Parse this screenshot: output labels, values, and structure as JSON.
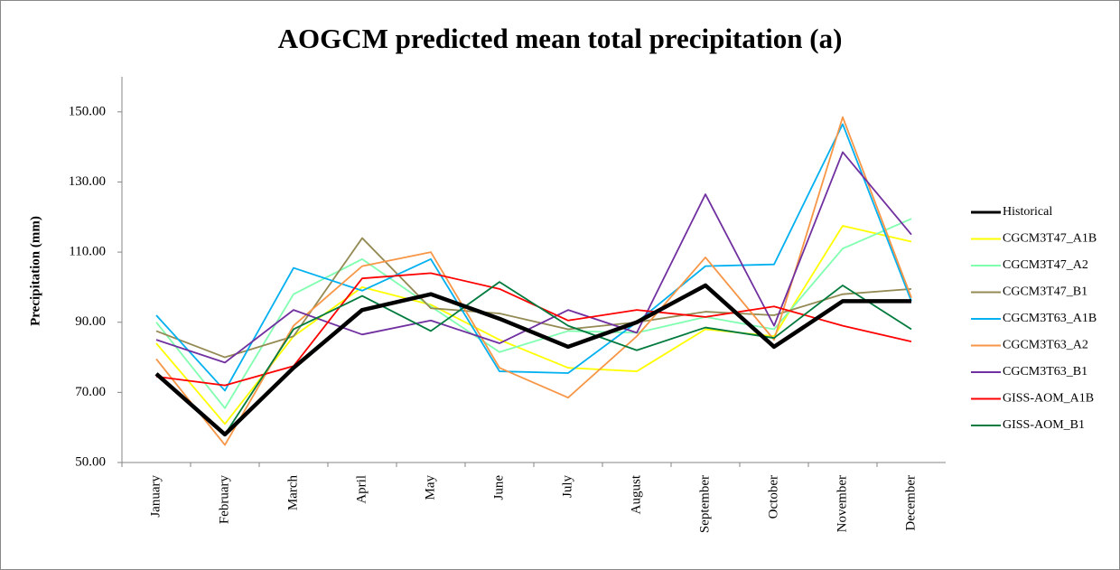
{
  "chart_data": {
    "type": "line",
    "title": "AOGCM predicted mean total precipitation (a)",
    "y_label": "Precipitation (mm)",
    "categories": [
      "January",
      "February",
      "March",
      "April",
      "May",
      "June",
      "July",
      "August",
      "September",
      "October",
      "November",
      "December"
    ],
    "ylim": [
      50,
      160
    ],
    "yticks": [
      {
        "value": 50,
        "label": "50.00"
      },
      {
        "value": 70,
        "label": "70.00"
      },
      {
        "value": 90,
        "label": "90.00"
      },
      {
        "value": 110,
        "label": "110.00"
      },
      {
        "value": 130,
        "label": "130.00"
      },
      {
        "value": 150,
        "label": "150.00"
      }
    ],
    "legend": "right",
    "series": [
      {
        "name": "Historical",
        "color": "#000000",
        "values": [
          75.3,
          58,
          77,
          93.5,
          98,
          91,
          83,
          90,
          100.5,
          83,
          96,
          96
        ]
      },
      {
        "name": "CGCM3T47_A1B",
        "color": "#ffff00",
        "values": [
          84,
          61,
          86,
          100,
          95,
          85,
          77,
          76,
          88,
          86,
          117.5,
          113
        ]
      },
      {
        "name": "CGCM3T47_A2",
        "color": "#80ffb0",
        "values": [
          90,
          65.5,
          98,
          108,
          94.5,
          81.5,
          87.5,
          87,
          91.5,
          88,
          111,
          119.5
        ]
      },
      {
        "name": "CGCM3T47_B1",
        "color": "#948a54",
        "values": [
          87.5,
          80,
          86,
          114,
          94,
          92.5,
          88,
          90,
          93,
          92,
          98,
          99.5
        ]
      },
      {
        "name": "CGCM3T63_A1B",
        "color": "#00b0f0",
        "values": [
          92,
          70.5,
          105.5,
          99,
          108,
          76,
          75.5,
          90,
          106,
          106.5,
          146.5,
          96
        ]
      },
      {
        "name": "CGCM3T63_A2",
        "color": "#f79646",
        "values": [
          79.5,
          55,
          89,
          106,
          110,
          77,
          68.5,
          86,
          108.5,
          85,
          148.5,
          97
        ]
      },
      {
        "name": "CGCM3T63_B1",
        "color": "#7030a0",
        "values": [
          85,
          78.5,
          93.5,
          86.5,
          90.5,
          84,
          93.5,
          87,
          126.5,
          89,
          138.5,
          115
        ]
      },
      {
        "name": "GISS-AOM_A1B",
        "color": "#ff0000",
        "values": [
          74.5,
          72,
          77.5,
          102.5,
          104,
          99.5,
          90.5,
          93.5,
          91.5,
          94.5,
          89,
          84.5
        ]
      },
      {
        "name": "GISS-AOM_B1",
        "color": "#007a3d",
        "values": [
          75,
          58,
          88,
          97.5,
          87.5,
          101.5,
          89,
          82,
          88.5,
          85.5,
          100.5,
          88
        ]
      }
    ]
  }
}
